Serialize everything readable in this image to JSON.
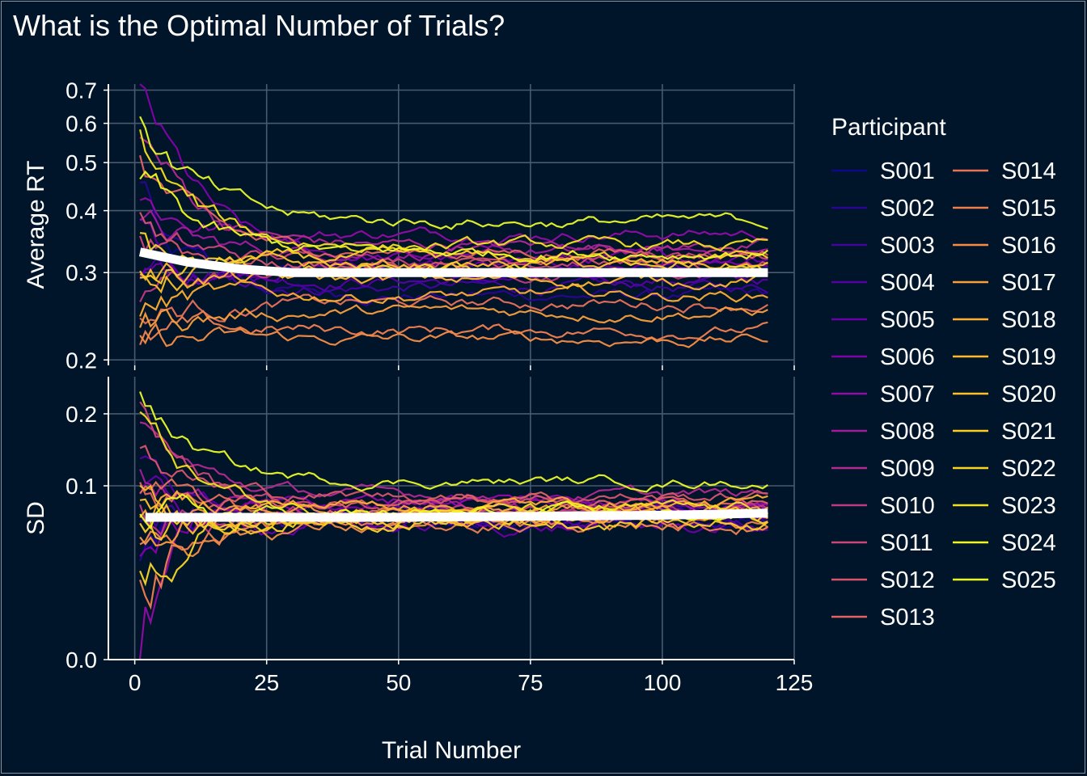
{
  "chart_data": {
    "type": "line",
    "title": "What is the Optimal Number of Trials?",
    "xlabel": "Trial Number",
    "x_ticks": [
      0,
      25,
      50,
      75,
      100,
      125
    ],
    "xlim": [
      -5,
      125
    ],
    "grid": true,
    "legend": {
      "title": "Participant",
      "placement": "right",
      "columns": 2,
      "entries": [
        "S001",
        "S002",
        "S003",
        "S004",
        "S005",
        "S006",
        "S007",
        "S008",
        "S009",
        "S010",
        "S011",
        "S012",
        "S013",
        "S014",
        "S015",
        "S016",
        "S017",
        "S018",
        "S019",
        "S020",
        "S021",
        "S022",
        "S023",
        "S024",
        "S025"
      ],
      "colors": [
        "#0d0887",
        "#2a0593",
        "#41049d",
        "#5601a4",
        "#6a00a8",
        "#7e03a8",
        "#8f0da4",
        "#a11b9b",
        "#b12a90",
        "#bf3984",
        "#cc4778",
        "#d6556d",
        "#e16462",
        "#e97158",
        "#f07f4f",
        "#f68d45",
        "#fa9e3b",
        "#fdad32",
        "#feb82c",
        "#fec029",
        "#fcce25",
        "#f8d524",
        "#f3e020",
        "#f0f921",
        "#e8f829"
      ],
      "median_color": "#ffffff"
    },
    "panels": [
      {
        "ylabel": "Average RT",
        "scale": "log",
        "y_ticks": [
          0.2,
          0.3,
          0.4,
          0.5,
          0.6,
          0.7
        ],
        "y_tick_labels": [
          "0.2",
          "0.3",
          "0.4",
          "0.5",
          "0.6",
          "0.7"
        ],
        "ylim": [
          0.195,
          0.72
        ],
        "series_final_values": {
          "S001": 0.3,
          "S002": 0.27,
          "S003": 0.28,
          "S004": 0.29,
          "S005": 0.31,
          "S006": 0.32,
          "S007": 0.36,
          "S008": 0.33,
          "S009": 0.34,
          "S010": 0.3,
          "S011": 0.32,
          "S012": 0.31,
          "S013": 0.33,
          "S014": 0.26,
          "S015": 0.23,
          "S016": 0.22,
          "S017": 0.25,
          "S018": 0.27,
          "S019": 0.29,
          "S020": 0.31,
          "S021": 0.32,
          "S022": 0.3,
          "S023": 0.34,
          "S024": 0.33,
          "S025": 0.38
        },
        "series_start_values": {
          "S001": 0.33,
          "S002": 0.45,
          "S003": 0.3,
          "S004": 0.38,
          "S005": 0.28,
          "S006": 0.7,
          "S007": 0.42,
          "S008": 0.36,
          "S009": 0.6,
          "S010": 0.27,
          "S011": 0.35,
          "S012": 0.4,
          "S013": 0.52,
          "S014": 0.24,
          "S015": 0.21,
          "S016": 0.22,
          "S017": 0.23,
          "S018": 0.26,
          "S019": 0.31,
          "S020": 0.3,
          "S021": 0.28,
          "S022": 0.34,
          "S023": 0.55,
          "S024": 0.48,
          "S025": 0.65
        },
        "median_series": {
          "x": [
            1,
            10,
            20,
            30,
            50,
            75,
            100,
            120
          ],
          "y": [
            0.33,
            0.315,
            0.305,
            0.3,
            0.3,
            0.3,
            0.3,
            0.3
          ]
        }
      },
      {
        "ylabel": "SD",
        "scale": "sqrt",
        "y_ticks": [
          0.0,
          0.1,
          0.2
        ],
        "y_tick_labels": [
          "0.0",
          "0.1",
          "0.2"
        ],
        "ylim": [
          0,
          0.265
        ],
        "series_final_values": {
          "S001": 0.065,
          "S002": 0.068,
          "S003": 0.062,
          "S004": 0.07,
          "S005": 0.058,
          "S006": 0.08,
          "S007": 0.085,
          "S008": 0.075,
          "S009": 0.09,
          "S010": 0.072,
          "S011": 0.078,
          "S012": 0.088,
          "S013": 0.082,
          "S014": 0.07,
          "S015": 0.06,
          "S016": 0.058,
          "S017": 0.075,
          "S018": 0.08,
          "S019": 0.065,
          "S020": 0.07,
          "S021": 0.063,
          "S022": 0.066,
          "S023": 0.074,
          "S024": 0.069,
          "S025": 0.105
        },
        "series_start_values": {
          "S001": 0.05,
          "S002": 0.04,
          "S003": 0.06,
          "S004": 0.14,
          "S005": 0.09,
          "S006": 0.02,
          "S007": 0.0,
          "S008": 0.12,
          "S009": 0.18,
          "S010": 0.07,
          "S011": 0.21,
          "S012": 0.15,
          "S013": 0.11,
          "S014": 0.09,
          "S015": 0.03,
          "S016": 0.05,
          "S017": 0.06,
          "S018": 0.08,
          "S019": 0.1,
          "S020": 0.07,
          "S021": 0.05,
          "S022": 0.04,
          "S023": 0.2,
          "S024": 0.06,
          "S025": 0.245
        },
        "median_series": {
          "x": [
            2,
            25,
            50,
            75,
            100,
            120
          ],
          "y": [
            0.067,
            0.067,
            0.067,
            0.068,
            0.069,
            0.071
          ]
        }
      }
    ]
  }
}
